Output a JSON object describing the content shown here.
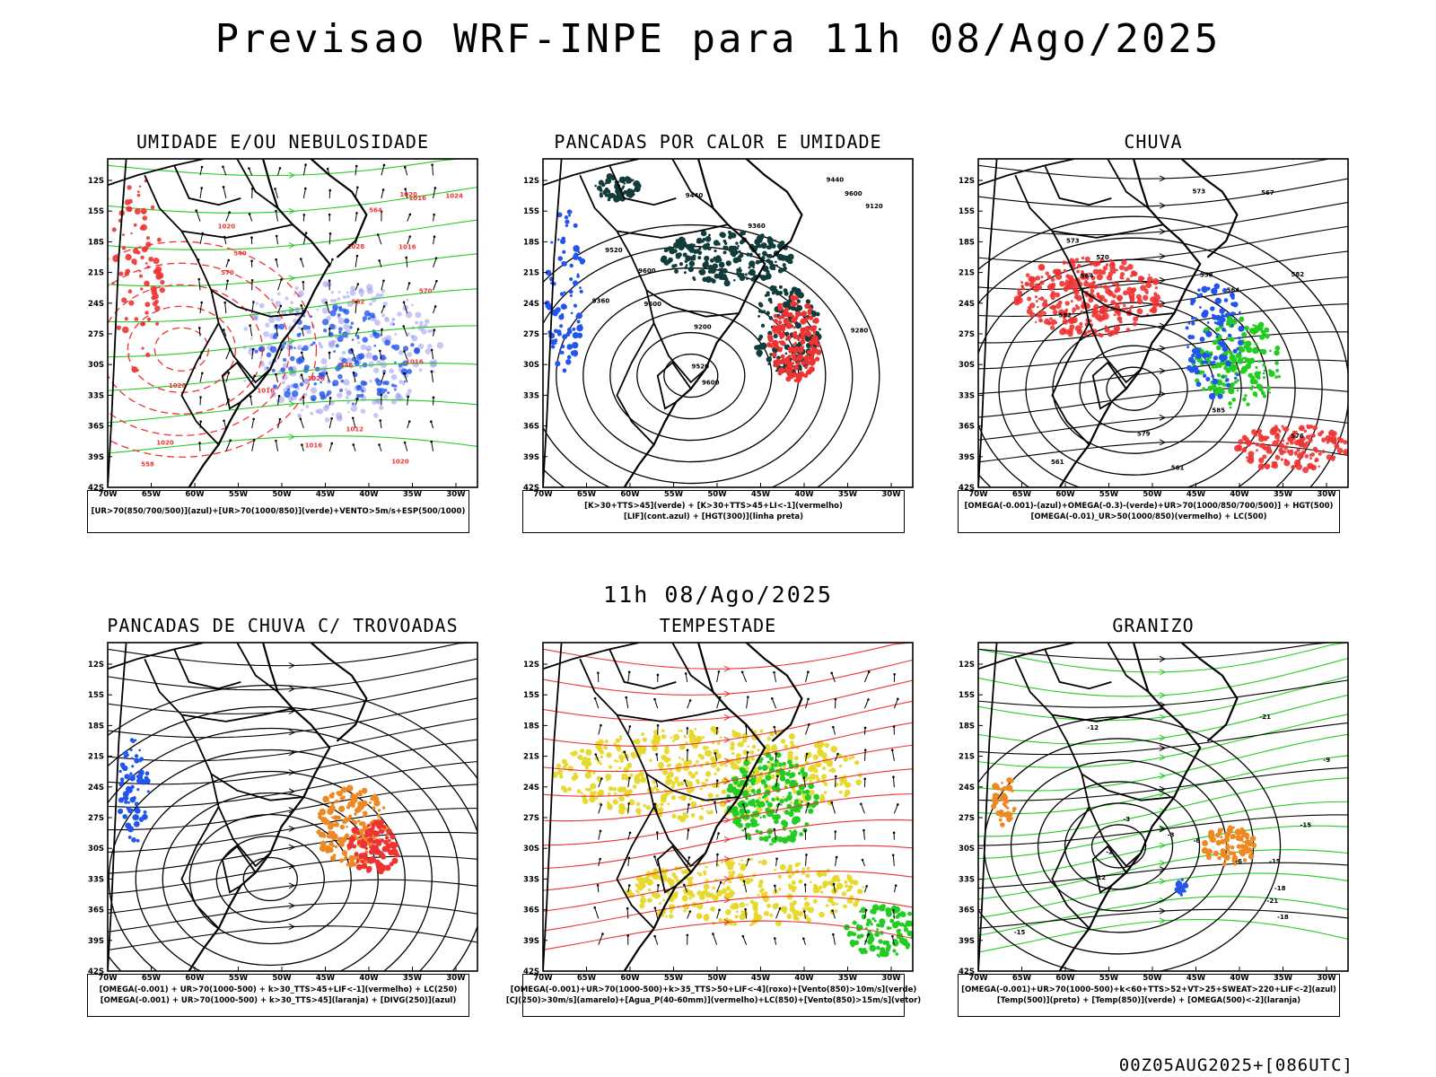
{
  "title": "Previsao WRF-INPE  para 11h 08/Ago/2025",
  "subtitle": "11h 08/Ago/2025",
  "footer": "00Z05AUG2025+[086UTC]",
  "axes": {
    "lat_labels": [
      "12S",
      "15S",
      "18S",
      "21S",
      "24S",
      "27S",
      "30S",
      "33S",
      "36S",
      "39S",
      "42S"
    ],
    "lon_labels": [
      "70W",
      "65W",
      "60W",
      "55W",
      "50W",
      "45W",
      "40W",
      "35W",
      "30W"
    ]
  },
  "colors": {
    "green": "#22cc22",
    "red": "#ee3333",
    "blue": "#2255ee",
    "lavender": "#9999ee",
    "darkteal": "#123c3c",
    "yellow": "#e6d82a",
    "orange": "#ee8822",
    "black": "#000000"
  },
  "panels": [
    {
      "id": "umidade",
      "title": "UMIDADE E/OU NEBULOSIDADE",
      "legend": [
        "[UR>70(850/700/500)](azul)+[UR>70(1000/850)](verde)+VENTO>5m/s+ESP(500/1000)"
      ],
      "labels": [
        "1016",
        "1020",
        "1024",
        "1016",
        "1016",
        "1016",
        "1020",
        "1020",
        "1012",
        "1028",
        "1020",
        "1028",
        "1020",
        "1016",
        "570",
        "558",
        "552",
        "546",
        "540",
        "564",
        "570"
      ]
    },
    {
      "id": "pancadas-calor",
      "title": "PANCADAS POR CALOR E UMIDADE",
      "legend": [
        "[K>30+TTS>45](verde) + [K>30+TTS>45+LI<-1](vermelho)",
        "[LIF](cont.azul) + [HGT(300)](linha preta)"
      ],
      "labels": [
        "9600",
        "9600",
        "9600",
        "9520",
        "9600",
        "9440",
        "9360",
        "9440",
        "9360",
        "9280",
        "9200",
        "9120",
        "9520"
      ]
    },
    {
      "id": "chuva",
      "title": "CHUVA",
      "legend": [
        "[OMEGA(-0.001)-(azul)+OMEGA(-0.3)-(verde)+UR>70(1000/850/700/500)] + HGT(500)",
        "[OMEGA(-0.01)_UR>50(1000/850)(vermelho) + LC(500)"
      ],
      "labels": [
        "585",
        "582",
        "582",
        "579",
        "576",
        "573",
        "570",
        "567",
        "561",
        "558",
        "564",
        "561",
        "564",
        "573"
      ]
    },
    {
      "id": "pancadas-trovoadas",
      "title": "PANCADAS DE CHUVA C/ TROVOADAS",
      "legend": [
        "[OMEGA(-0.001) + UR>70(1000-500) + k>30_TTS>45+LIF<-1](vermelho) + LC(250)",
        "[OMEGA(-0.001) + UR>70(1000-500) + k>30_TTS>45](laranja) + [DIVG(250)](azul)"
      ],
      "labels": []
    },
    {
      "id": "tempestade",
      "title": "TEMPESTADE",
      "legend": [
        "[OMEGA(-0.001)+UR>70(1000-500)+k>35_TTS>50+LIF<-4](roxo)+[Vento(850)>10m/s](verde)",
        "[CJ(250)>30m/s](amarelo)+[Agua_P(40-60mm)](vermelho)+LC(850)+[Vento(850)>15m/s](vetor)"
      ],
      "labels": []
    },
    {
      "id": "granizo",
      "title": "GRANIZO",
      "legend": [
        "[OMEGA(-0.001)+UR>70(1000-500)+k<60+TTS>52+VT>25+SWEAT>220+LIF<-2](azul)",
        "[Temp(500)](preto) + [Temp(850)](verde) + [OMEGA(500)<-2](laranja)"
      ],
      "labels": [
        "-18",
        "-15",
        "-12",
        "-12",
        "-9",
        "-6",
        "-3",
        "-21",
        "-15",
        "-18",
        "-21",
        "-15",
        "-6",
        "-3",
        "-2"
      ]
    }
  ]
}
